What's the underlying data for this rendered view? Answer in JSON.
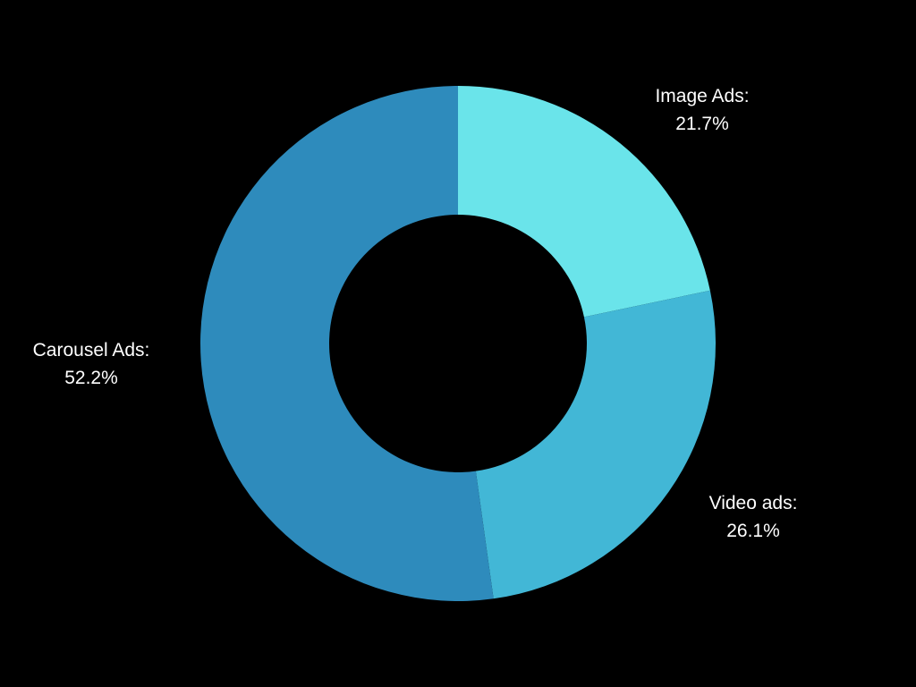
{
  "chart_data": {
    "type": "pie",
    "title": "",
    "donut": true,
    "legend": "none",
    "slices": [
      {
        "key": "image_ads",
        "label": "Image Ads:",
        "display_value": "21.7%",
        "value": 21.7,
        "color": "#6ae4ea"
      },
      {
        "key": "video_ads",
        "label": "Video ads:",
        "display_value": "26.1%",
        "value": 26.1,
        "color": "#42b7d6"
      },
      {
        "key": "carousel_ads",
        "label": "Carousel Ads:",
        "display_value": "52.2%",
        "value": 52.2,
        "color": "#2e8bbc"
      }
    ]
  },
  "background_color": "#000000"
}
